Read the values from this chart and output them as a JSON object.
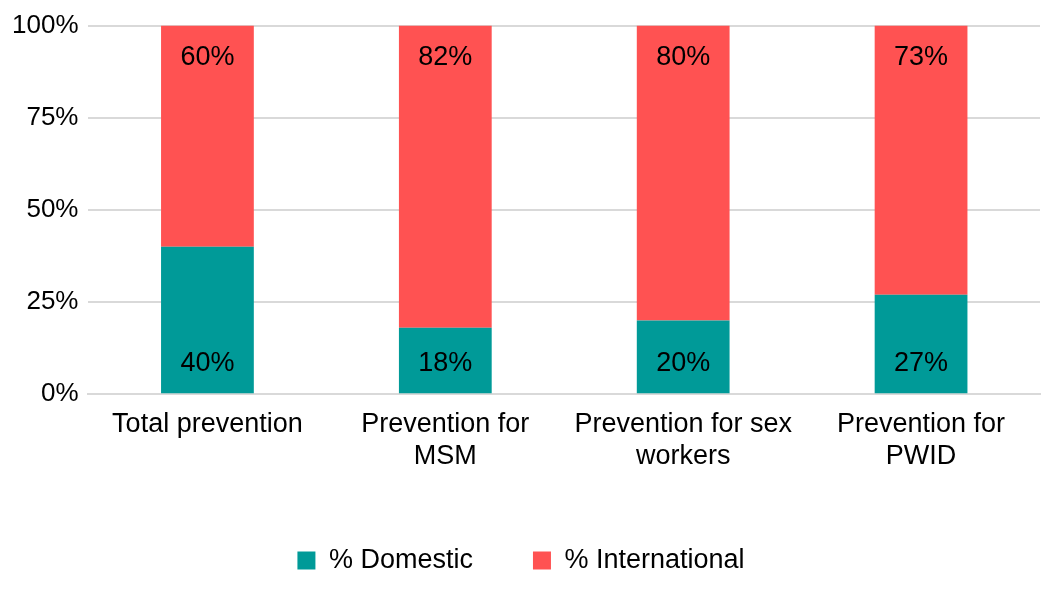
{
  "chart_data": {
    "type": "bar",
    "stacked": true,
    "categories": [
      "Total prevention",
      "Prevention for MSM",
      "Prevention for sex workers",
      "Prevention for PWID"
    ],
    "series": [
      {
        "name": "% Domestic",
        "color": "#009a98",
        "values": [
          40,
          18,
          20,
          27
        ],
        "value_labels": [
          "40%",
          "18%",
          "20%",
          "27%"
        ]
      },
      {
        "name": "% International",
        "color": "#ff5252",
        "values": [
          60,
          82,
          80,
          73
        ],
        "value_labels": [
          "60%",
          "82%",
          "80%",
          "73%"
        ]
      }
    ],
    "ylim": [
      0,
      100
    ],
    "yticks": [
      {
        "value": 0,
        "label": "0%"
      },
      {
        "value": 25,
        "label": "25%"
      },
      {
        "value": 50,
        "label": "50%"
      },
      {
        "value": 75,
        "label": "75%"
      },
      {
        "value": 100,
        "label": "100%"
      }
    ],
    "grid": "y",
    "legend": "bottom"
  }
}
